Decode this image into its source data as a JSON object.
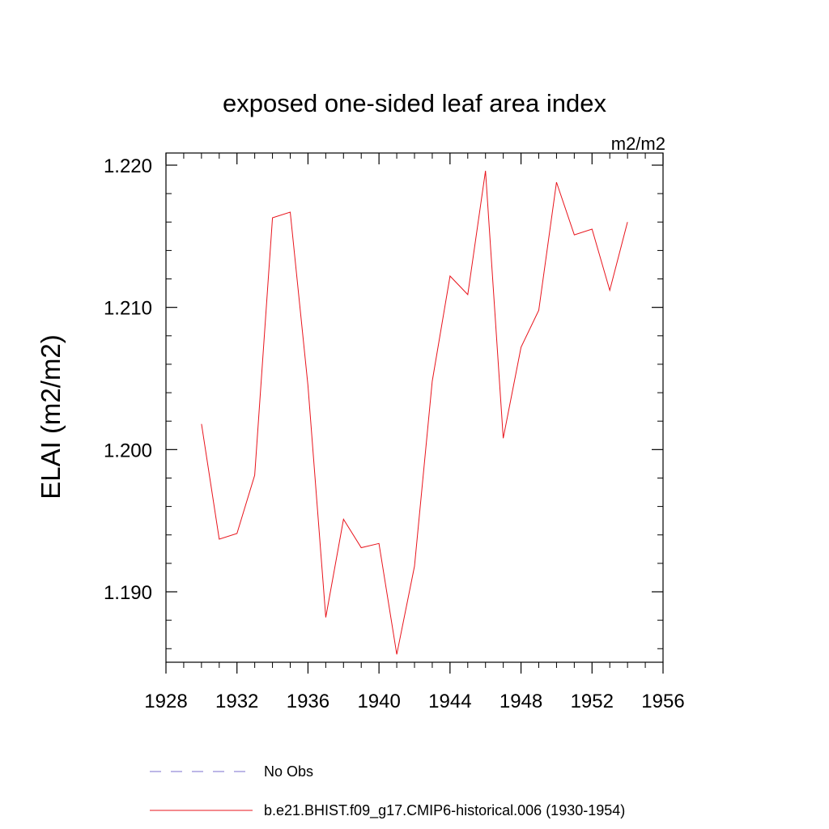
{
  "chart_data": {
    "type": "line",
    "title": "exposed one-sided leaf area index",
    "units": "m2/m2",
    "ylabel": "ELAI  (m2/m2)",
    "xlabel": "",
    "xlim": [
      1928,
      1956
    ],
    "ylim": [
      1.185,
      1.221
    ],
    "x_ticks": [
      1928,
      1932,
      1936,
      1940,
      1944,
      1948,
      1952,
      1956
    ],
    "x_tick_labels": [
      "1928",
      "1932",
      "1936",
      "1940",
      "1944",
      "1948",
      "1952",
      "1956"
    ],
    "y_ticks": [
      1.19,
      1.2,
      1.21,
      1.22
    ],
    "y_tick_labels": [
      "1.190",
      "1.200",
      "1.210",
      "1.220"
    ],
    "grid": false,
    "legend_position": "bottom",
    "series": [
      {
        "name": "No Obs",
        "color": "#7b6fcf",
        "dash": "dashed",
        "x": [],
        "values": []
      },
      {
        "name": "b.e21.BHIST.f09_g17.CMIP6-historical.006 (1930-1954)",
        "color": "#e8141c",
        "dash": "solid",
        "x": [
          1930,
          1931,
          1932,
          1933,
          1934,
          1935,
          1936,
          1937,
          1938,
          1939,
          1940,
          1941,
          1942,
          1943,
          1944,
          1945,
          1946,
          1947,
          1948,
          1949,
          1950,
          1951,
          1952,
          1953,
          1954
        ],
        "values": [
          1.2018,
          1.1937,
          1.1941,
          1.1982,
          1.2163,
          1.2167,
          1.2045,
          1.1882,
          1.1951,
          1.1931,
          1.1934,
          1.1856,
          1.1918,
          1.2048,
          1.2122,
          1.2109,
          1.2196,
          1.2008,
          1.2072,
          1.2098,
          1.2188,
          1.2151,
          1.2155,
          1.2112,
          1.216
        ]
      }
    ]
  }
}
